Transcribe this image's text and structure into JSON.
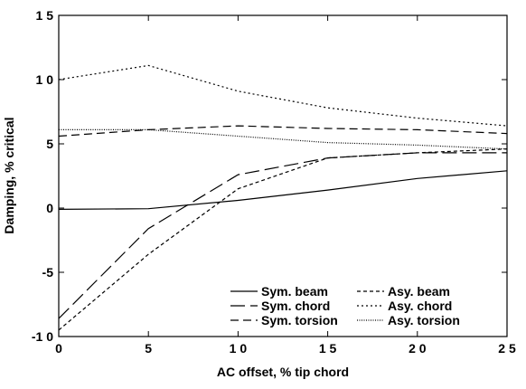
{
  "chart_data": {
    "type": "line",
    "xlabel": "AC offset, % tip chord",
    "ylabel": "Damping, % critical",
    "xlim": [
      0,
      25
    ],
    "ylim": [
      -10,
      15
    ],
    "x_ticks": [
      0,
      5,
      10,
      15,
      20,
      25
    ],
    "y_ticks": [
      -10,
      -5,
      0,
      5,
      10,
      15
    ],
    "x_tick_labels": [
      "0",
      "5",
      "1 0",
      "1 5",
      "2 0",
      "2 5"
    ],
    "y_tick_labels": [
      "-1 0",
      "-5",
      "0",
      "5",
      "1 0",
      "1 5"
    ],
    "grid": false,
    "legend_position": "bottom-right",
    "series": [
      {
        "name": "Sym. beam",
        "dash": "solid",
        "x": [
          0,
          5,
          10,
          15,
          20,
          25
        ],
        "y": [
          -0.1,
          -0.05,
          0.6,
          1.4,
          2.3,
          2.9
        ]
      },
      {
        "name": "Sym. chord",
        "dash": "longdash",
        "x": [
          0,
          5,
          10,
          15,
          20,
          25
        ],
        "y": [
          -8.6,
          -1.6,
          2.6,
          3.9,
          4.3,
          4.3
        ]
      },
      {
        "name": "Sym. torsion",
        "dash": "dash",
        "x": [
          0,
          5,
          10,
          15,
          20,
          25
        ],
        "y": [
          5.6,
          6.1,
          6.4,
          6.2,
          6.1,
          5.8
        ]
      },
      {
        "name": "Asy. beam",
        "dash": "shortdash",
        "x": [
          0,
          5,
          10,
          15,
          20,
          25
        ],
        "y": [
          -9.5,
          -3.6,
          1.5,
          3.9,
          4.3,
          4.6
        ]
      },
      {
        "name": "Asy. chord",
        "dash": "dot",
        "x": [
          0,
          5,
          10,
          15,
          20,
          25
        ],
        "y": [
          10.0,
          11.1,
          9.1,
          7.8,
          7.0,
          6.4
        ]
      },
      {
        "name": "Asy. torsion",
        "dash": "finedot",
        "x": [
          0,
          5,
          10,
          15,
          20,
          25
        ],
        "y": [
          6.1,
          6.1,
          5.6,
          5.1,
          4.9,
          4.6
        ]
      }
    ]
  }
}
